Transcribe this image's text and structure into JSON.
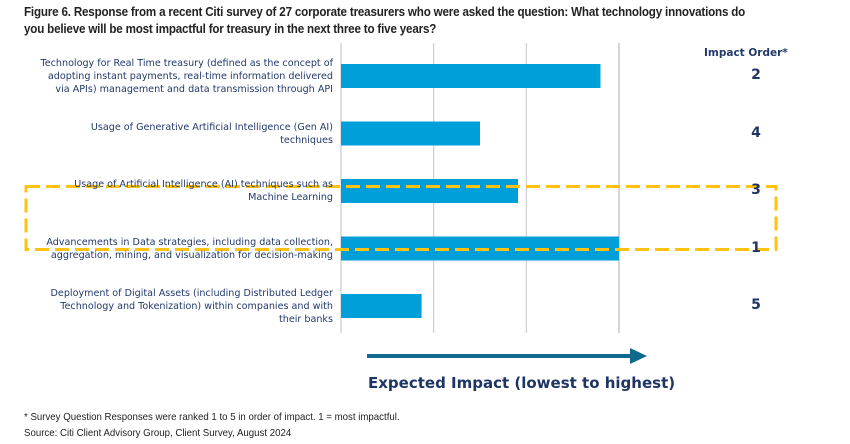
{
  "title": "Figure 6. Response from a recent Citi survey of 27 corporate treasurers who were asked the question: What technology innovations do you believe will be most impactful for treasury in the next three to five years?",
  "impact_header": "Impact Order*",
  "axis_caption": "Expected Impact (lowest to highest)",
  "footnote": "* Survey Question Responses were ranked 1 to 5 in order of impact. 1 = most impactful.",
  "source": "Source: Citi Client Advisory Group, Client Survey, August 2024",
  "colors": {
    "bar": "#009fda",
    "highlight_box": "#ffc20e",
    "arrow": "#0f6a8e",
    "gridline": "#cccccc",
    "label_text": "#233a6b"
  },
  "chart_data": {
    "type": "bar",
    "orientation": "horizontal",
    "title": "Figure 6. Response from a recent Citi survey of 27 corporate treasurers who were asked the question: What technology innovations do you believe will be most impactful for treasury in the next three to five years?",
    "xlabel": "Expected Impact (lowest to highest)",
    "ylabel": "",
    "xlim": [
      0,
      3
    ],
    "grid": true,
    "x_tick_labels_shown": false,
    "categories": [
      "Technology for Real Time treasury (defined as the concept of adopting instant payments, real-time information delivered via APIs) management and data transmission through API",
      "Usage of Generative Artificial Intelligence (Gen AI) techniques",
      "Usage of Artificial Intelligence (AI) techniques such as Machine Learning",
      "Advancements in Data strategies, including data collection, aggregation, mining, and visualization for decision-making",
      "Deployment of Digital Assets (including Distributed Ledger Technology and Tokenization) within companies and with their banks"
    ],
    "category_label_lines": [
      [
        "Technology for Real Time treasury (defined as the concept of",
        "adopting instant payments, real-time information delivered",
        "via APIs) management and data transmission through API"
      ],
      [
        "Usage of Generative Artificial Intelligence (Gen AI)",
        "techniques"
      ],
      [
        "Usage of Artificial Intelligence (AI) techniques such as",
        "Machine Learning"
      ],
      [
        "Advancements in Data strategies, including data collection,",
        "aggregation, mining, and visualization for decision-making"
      ],
      [
        "Deployment of Digital Assets (including Distributed Ledger",
        "Technology and Tokenization) within companies and with",
        "their banks"
      ]
    ],
    "values": [
      2.8,
      1.5,
      1.91,
      3.0,
      0.87
    ],
    "impact_order": [
      "2",
      "4",
      "3",
      "1",
      "5"
    ],
    "highlighted_index": 3,
    "annotations": [
      "Impact Order*",
      "* Survey Question Responses were ranked 1 to 5 in order of impact. 1 = most impactful."
    ]
  }
}
